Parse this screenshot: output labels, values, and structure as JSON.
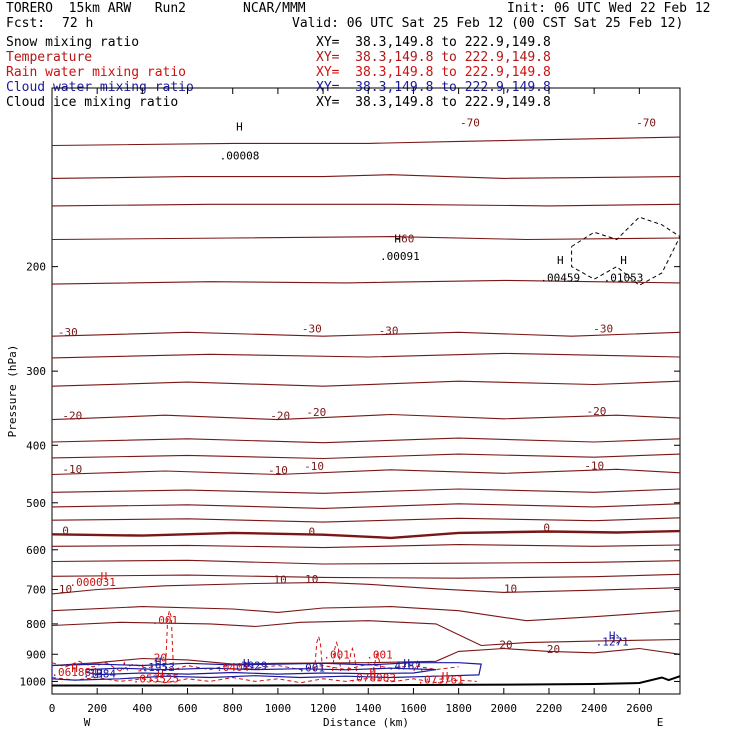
{
  "header": {
    "model": "TORERO  15km ARW   Run2",
    "institution": "NCAR/MMM",
    "init": "Init: 06 UTC Wed 22 Feb 12",
    "fcst_label": "Fcst:",
    "fcst_value": "72 h",
    "valid": "Valid: 06 UTC Sat 25 Feb 12 (00 CST Sat 25 Feb 12)"
  },
  "fields": [
    {
      "name": "Snow mixing ratio",
      "xy": "XY=  38.3,149.8 to 222.9,149.8",
      "color": "#000000"
    },
    {
      "name": "Temperature",
      "xy": "XY=  38.3,149.8 to 222.9,149.8",
      "color": "#b01818"
    },
    {
      "name": "Rain water mixing ratio",
      "xy": "XY=  38.3,149.8 to 222.9,149.8",
      "color": "#d01010"
    },
    {
      "name": "Cloud water mixing ratio",
      "xy": "XY=  38.3,149.8 to 222.9,149.8",
      "color": "#1a1aa0"
    },
    {
      "name": "Cloud ice mixing ratio",
      "xy": "XY=  38.3,149.8 to 222.9,149.8",
      "color": "#000000"
    }
  ],
  "colors": {
    "temperature": "#7a1616",
    "rain": "#d01010",
    "cloud_water": "#1a1aa0",
    "terrain": "#000000",
    "ice": "#000000"
  },
  "chart_data": {
    "type": "line",
    "xlabel": "Distance (km)",
    "ylabel": "Pressure (hPa)",
    "xlim": [
      0,
      2780
    ],
    "ylim": [
      1050,
      100
    ],
    "y_scale": "log",
    "x_ticks": [
      0,
      200,
      400,
      600,
      800,
      1000,
      1200,
      1400,
      1600,
      1800,
      2000,
      2200,
      2400,
      2600
    ],
    "x_tick_labels": [
      "0",
      "200",
      "400",
      "600",
      "800",
      "1000",
      "1200",
      "1400",
      "1600",
      "1800",
      "2000",
      "2200",
      "2400",
      "2600"
    ],
    "y_ticks": [
      200,
      300,
      400,
      500,
      600,
      700,
      800,
      900,
      1000
    ],
    "y_tick_labels": [
      "200",
      "300",
      "400",
      "500",
      "600",
      "700",
      "800",
      "900",
      "1000"
    ],
    "endpoints": {
      "left": "W",
      "right": "E"
    },
    "temperature_contours": [
      {
        "label": "-70",
        "p": [
          [
            0,
            125
          ],
          [
            800,
            124
          ],
          [
            1400,
            124
          ],
          [
            1800,
            123
          ],
          [
            2300,
            122
          ],
          [
            2780,
            121
          ]
        ]
      },
      {
        "label": "-60",
        "p": [
          [
            0,
            142
          ],
          [
            600,
            141
          ],
          [
            1200,
            141
          ],
          [
            1500,
            140
          ],
          [
            2000,
            142
          ],
          [
            2780,
            141
          ]
        ]
      },
      {
        "label": "",
        "p": [
          [
            0,
            158
          ],
          [
            700,
            157
          ],
          [
            1500,
            157
          ],
          [
            2200,
            158
          ],
          [
            2780,
            157
          ]
        ]
      },
      {
        "label": "",
        "p": [
          [
            0,
            180
          ],
          [
            800,
            179
          ],
          [
            1500,
            178
          ],
          [
            2100,
            180
          ],
          [
            2780,
            179
          ]
        ]
      },
      {
        "label": "",
        "p": [
          [
            0,
            214
          ],
          [
            700,
            212
          ],
          [
            1300,
            213
          ],
          [
            2000,
            211
          ],
          [
            2780,
            213
          ]
        ]
      },
      {
        "label": "-30",
        "p": [
          [
            0,
            262
          ],
          [
            600,
            258
          ],
          [
            1200,
            262
          ],
          [
            1800,
            258
          ],
          [
            2300,
            262
          ],
          [
            2780,
            258
          ]
        ]
      },
      {
        "label": "",
        "p": [
          [
            0,
            285
          ],
          [
            700,
            281
          ],
          [
            1400,
            284
          ],
          [
            2000,
            280
          ],
          [
            2780,
            284
          ]
        ]
      },
      {
        "label": "",
        "p": [
          [
            0,
            318
          ],
          [
            600,
            313
          ],
          [
            1200,
            318
          ],
          [
            1800,
            312
          ],
          [
            2400,
            316
          ],
          [
            2780,
            312
          ]
        ]
      },
      {
        "label": "-20",
        "p": [
          [
            0,
            362
          ],
          [
            500,
            356
          ],
          [
            1000,
            362
          ],
          [
            1500,
            355
          ],
          [
            2000,
            361
          ],
          [
            2500,
            356
          ],
          [
            2780,
            360
          ]
        ]
      },
      {
        "label": "",
        "p": [
          [
            0,
            395
          ],
          [
            600,
            390
          ],
          [
            1200,
            396
          ],
          [
            1800,
            389
          ],
          [
            2400,
            395
          ],
          [
            2780,
            390
          ]
        ]
      },
      {
        "label": "",
        "p": [
          [
            0,
            420
          ],
          [
            600,
            416
          ],
          [
            1200,
            421
          ],
          [
            1800,
            414
          ],
          [
            2400,
            419
          ],
          [
            2780,
            414
          ]
        ]
      },
      {
        "label": "-10",
        "p": [
          [
            0,
            448
          ],
          [
            500,
            442
          ],
          [
            1000,
            448
          ],
          [
            1500,
            440
          ],
          [
            2000,
            446
          ],
          [
            2500,
            439
          ],
          [
            2780,
            445
          ]
        ]
      },
      {
        "label": "",
        "p": [
          [
            0,
            480
          ],
          [
            600,
            476
          ],
          [
            1200,
            482
          ],
          [
            1800,
            474
          ],
          [
            2400,
            480
          ],
          [
            2780,
            474
          ]
        ]
      },
      {
        "label": "",
        "p": [
          [
            0,
            508
          ],
          [
            600,
            504
          ],
          [
            1200,
            511
          ],
          [
            1800,
            502
          ],
          [
            2400,
            508
          ],
          [
            2780,
            502
          ]
        ]
      },
      {
        "label": "",
        "p": [
          [
            0,
            535
          ],
          [
            600,
            532
          ],
          [
            1200,
            539
          ],
          [
            1800,
            531
          ],
          [
            2400,
            536
          ],
          [
            2780,
            530
          ]
        ]
      },
      {
        "label": "0",
        "p": [
          [
            0,
            565
          ],
          [
            400,
            568
          ],
          [
            800,
            562
          ],
          [
            1200,
            566
          ],
          [
            1500,
            573
          ],
          [
            1800,
            562
          ],
          [
            2200,
            559
          ],
          [
            2500,
            561
          ],
          [
            2780,
            558
          ]
        ]
      },
      {
        "label": "",
        "p": [
          [
            0,
            592
          ],
          [
            600,
            590
          ],
          [
            1200,
            595
          ],
          [
            1800,
            588
          ],
          [
            2400,
            592
          ],
          [
            2780,
            589
          ]
        ]
      },
      {
        "label": "",
        "p": [
          [
            0,
            628
          ],
          [
            600,
            625
          ],
          [
            1200,
            634
          ],
          [
            1800,
            632
          ],
          [
            2400,
            630
          ],
          [
            2780,
            626
          ]
        ]
      },
      {
        "label": "",
        "p": [
          [
            0,
            665
          ],
          [
            600,
            662
          ],
          [
            1200,
            668
          ],
          [
            1800,
            670
          ],
          [
            2400,
            666
          ],
          [
            2780,
            660
          ]
        ]
      },
      {
        "label": "10",
        "p": [
          [
            0,
            712
          ],
          [
            200,
            700
          ],
          [
            500,
            690
          ],
          [
            900,
            684
          ],
          [
            1200,
            681
          ],
          [
            1400,
            686
          ],
          [
            1700,
            698
          ],
          [
            2000,
            708
          ],
          [
            2400,
            702
          ],
          [
            2780,
            695
          ]
        ]
      },
      {
        "label": "",
        "p": [
          [
            0,
            760
          ],
          [
            400,
            748
          ],
          [
            800,
            755
          ],
          [
            1000,
            765
          ],
          [
            1200,
            752
          ],
          [
            1500,
            748
          ],
          [
            1800,
            760
          ],
          [
            2100,
            790
          ],
          [
            2400,
            778
          ],
          [
            2780,
            760
          ]
        ]
      },
      {
        "label": "",
        "p": [
          [
            0,
            805
          ],
          [
            300,
            795
          ],
          [
            700,
            800
          ],
          [
            900,
            808
          ],
          [
            1100,
            795
          ],
          [
            1400,
            790
          ],
          [
            1700,
            800
          ],
          [
            1900,
            870
          ],
          [
            2100,
            860
          ],
          [
            2400,
            855
          ],
          [
            2780,
            850
          ]
        ]
      },
      {
        "label": "20",
        "p": [
          [
            0,
            940
          ],
          [
            200,
            930
          ],
          [
            400,
            915
          ],
          [
            600,
            920
          ],
          [
            800,
            935
          ],
          [
            1000,
            932
          ],
          [
            1400,
            930
          ],
          [
            1700,
            925
          ],
          [
            1800,
            890
          ],
          [
            2000,
            880
          ],
          [
            2200,
            890
          ],
          [
            2400,
            895
          ],
          [
            2600,
            880
          ],
          [
            2780,
            900
          ]
        ]
      }
    ],
    "rain_labels": [
      {
        "text": "H",
        "x": 230,
        "p": 675
      },
      {
        "text": ".000031",
        "x": 180,
        "p": 690
      },
      {
        "text": ".001",
        "x": 500,
        "p": 800
      },
      {
        "text": ".001",
        "x": 1260,
        "p": 915
      },
      {
        "text": ".001",
        "x": 1450,
        "p": 915
      },
      {
        "text": "H",
        "x": 480,
        "p": 985
      },
      {
        "text": ".053525",
        "x": 460,
        "p": 1005
      },
      {
        "text": "H",
        "x": 1420,
        "p": 980
      },
      {
        "text": ".078983",
        "x": 1420,
        "p": 1000
      },
      {
        "text": "H",
        "x": 1740,
        "p": 995
      },
      {
        "text": ".073761",
        "x": 1720,
        "p": 1008
      },
      {
        "text": "H",
        "x": 100,
        "p": 965
      },
      {
        "text": ".061884",
        "x": 100,
        "p": 980
      },
      {
        "text": ".0404",
        "x": 800,
        "p": 960
      },
      {
        "text": "20",
        "x": 480,
        "p": 925
      }
    ],
    "cloud_water_labels": [
      {
        "text": "H",
        "x": 2480,
        "p": 850
      },
      {
        "text": ".1271",
        "x": 2480,
        "p": 870
      },
      {
        "text": "H",
        "x": 470,
        "p": 940
      },
      {
        "text": ".1953",
        "x": 470,
        "p": 960
      },
      {
        "text": "H",
        "x": 860,
        "p": 945
      },
      {
        "text": ".3929",
        "x": 880,
        "p": 955
      },
      {
        "text": ".001",
        "x": 1150,
        "p": 962
      },
      {
        "text": "H",
        "x": 1570,
        "p": 945
      },
      {
        "text": ".4787",
        "x": 1560,
        "p": 955
      },
      {
        "text": "H",
        "x": 210,
        "p": 985
      },
      {
        "text": ".1384",
        "x": 210,
        "p": 985
      }
    ],
    "snow_labels": [
      {
        "text": "H",
        "x": 830,
        "p": 118
      },
      {
        "text": ".00008",
        "x": 830,
        "p": 132
      }
    ],
    "ice_labels": [
      {
        "text": "H",
        "x": 1530,
        "p": 182
      },
      {
        "text": ".00091",
        "x": 1540,
        "p": 195
      },
      {
        "text": "H",
        "x": 2250,
        "p": 198
      },
      {
        "text": ".00459",
        "x": 2250,
        "p": 212
      },
      {
        "text": "H",
        "x": 2530,
        "p": 198
      },
      {
        "text": ".01053",
        "x": 2530,
        "p": 212
      }
    ],
    "temperature_labels": [
      {
        "text": "-70",
        "x": 1850,
        "p": 116
      },
      {
        "text": "-70",
        "x": 2630,
        "p": 116
      },
      {
        "text": "-60",
        "x": 1560,
        "p": 182
      },
      {
        "text": "-30",
        "x": 70,
        "p": 262
      },
      {
        "text": "-30",
        "x": 1150,
        "p": 258
      },
      {
        "text": "-30",
        "x": 1490,
        "p": 260
      },
      {
        "text": "-30",
        "x": 2440,
        "p": 258
      },
      {
        "text": "-20",
        "x": 90,
        "p": 362
      },
      {
        "text": "-20",
        "x": 1010,
        "p": 362
      },
      {
        "text": "-20",
        "x": 1170,
        "p": 357
      },
      {
        "text": "-20",
        "x": 2410,
        "p": 356
      },
      {
        "text": "-10",
        "x": 90,
        "p": 445
      },
      {
        "text": "-10",
        "x": 1000,
        "p": 447
      },
      {
        "text": "-10",
        "x": 1160,
        "p": 440
      },
      {
        "text": "-10",
        "x": 2400,
        "p": 439
      },
      {
        "text": "0",
        "x": 60,
        "p": 566
      },
      {
        "text": "0",
        "x": 1150,
        "p": 568
      },
      {
        "text": "0",
        "x": 2190,
        "p": 559
      },
      {
        "text": "10",
        "x": 60,
        "p": 710
      },
      {
        "text": "10",
        "x": 1010,
        "p": 684
      },
      {
        "text": "10",
        "x": 1150,
        "p": 682
      },
      {
        "text": "10",
        "x": 2030,
        "p": 708
      },
      {
        "text": "20",
        "x": 2010,
        "p": 880
      },
      {
        "text": "20",
        "x": 2220,
        "p": 895
      }
    ],
    "terrain": [
      [
        0,
        1016
      ],
      [
        800,
        1016
      ],
      [
        1600,
        1014
      ],
      [
        2100,
        1012
      ],
      [
        2400,
        1010
      ],
      [
        2600,
        1006
      ],
      [
        2700,
        985
      ],
      [
        2730,
        995
      ],
      [
        2780,
        980
      ]
    ]
  }
}
